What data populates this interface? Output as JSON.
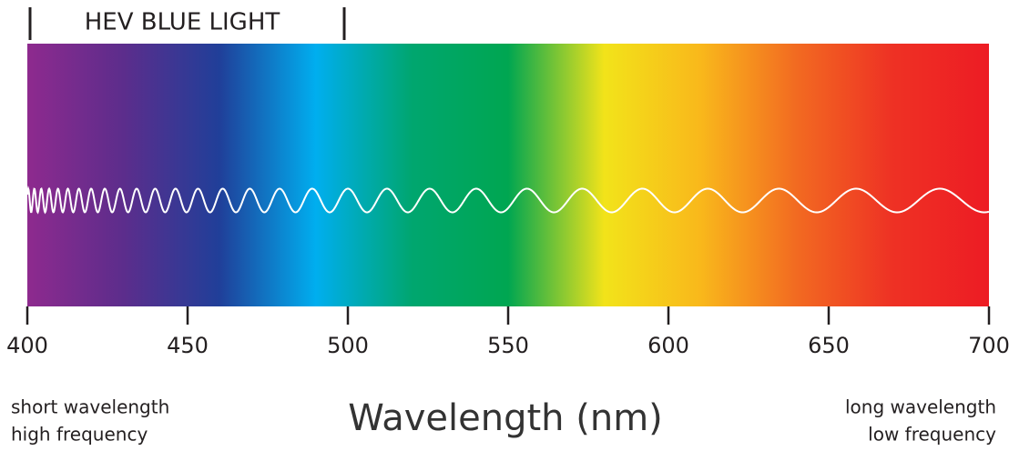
{
  "chart_data": {
    "type": "spectrum",
    "xlim": [
      400,
      700
    ],
    "xticks": [
      400,
      450,
      500,
      550,
      600,
      650,
      700
    ],
    "xlabel": "Wavelength (nm)",
    "highlight": {
      "label": "HEV BLUE LIGHT",
      "range": [
        400,
        500
      ]
    },
    "left_note": [
      "short wavelength",
      "high frequency"
    ],
    "right_note": [
      "long wavelength",
      "low frequency"
    ],
    "colors": [
      "#8e2a8e",
      "#5c2d8c",
      "#203f99",
      "#00aeef",
      "#00a66f",
      "#00a651",
      "#f2e31a",
      "#f9b81b",
      "#f26a21",
      "#ee3124",
      "#ed1c24"
    ]
  }
}
